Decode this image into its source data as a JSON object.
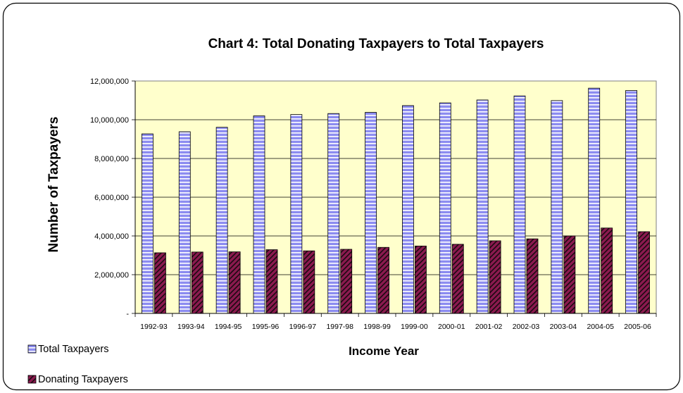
{
  "chart_data": {
    "type": "bar",
    "title": "Chart 4: Total Donating Taxpayers to Total Taxpayers",
    "xlabel": "Income Year",
    "ylabel": "Number of Taxpayers",
    "categories": [
      "1992-93",
      "1993-94",
      "1994-95",
      "1995-96",
      "1996-97",
      "1997-98",
      "1998-99",
      "1999-00",
      "2000-01",
      "2001-02",
      "2002-03",
      "2003-04",
      "2004-05",
      "2005-06"
    ],
    "series": [
      {
        "name": "Total Taxpayers",
        "color": "#8c8cf0",
        "pattern": "horizontal-stripes",
        "values": [
          9270000,
          9380000,
          9610000,
          10200000,
          10270000,
          10320000,
          10380000,
          10730000,
          10870000,
          11020000,
          11230000,
          10990000,
          11630000,
          11510000
        ]
      },
      {
        "name": "Donating Taxpayers",
        "color": "#8b1a4f",
        "pattern": "diagonal-stripes",
        "values": [
          3130000,
          3170000,
          3180000,
          3290000,
          3230000,
          3310000,
          3410000,
          3480000,
          3570000,
          3750000,
          3850000,
          4000000,
          4410000,
          4220000
        ]
      }
    ],
    "ylim": [
      0,
      12000000
    ],
    "yticks": [
      0,
      2000000,
      4000000,
      6000000,
      8000000,
      10000000,
      12000000
    ],
    "ytick_labels": [
      "-",
      "2,000,000",
      "4,000,000",
      "6,000,000",
      "8,000,000",
      "10,000,000",
      "12,000,000"
    ],
    "grid": true,
    "plot_background": "#ffffcc",
    "legend_placement": "bottom-left"
  }
}
